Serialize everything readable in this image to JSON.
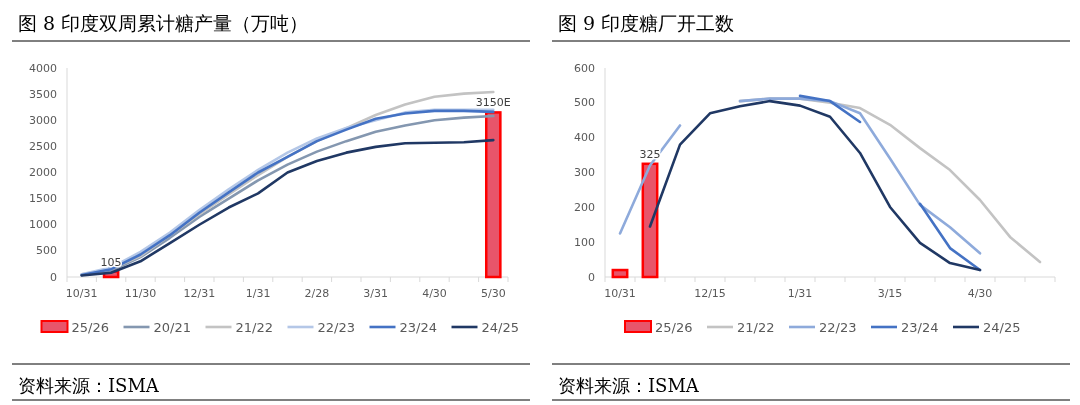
{
  "chart_data": [
    {
      "type": "line",
      "title": "图 8  印度双周累计糖产量（万吨）",
      "categories": [
        "10/31",
        null,
        "11/30",
        null,
        "12/31",
        null,
        "1/31",
        null,
        "2/28",
        null,
        "3/31",
        null,
        "4/30",
        null,
        "5/30"
      ],
      "ylim": [
        0,
        4000
      ],
      "yticks": [
        0,
        500,
        1000,
        1500,
        2000,
        2500,
        3000,
        3500,
        4000
      ],
      "legend": "bottom",
      "annotations": [
        "资料来源：ISMA"
      ],
      "series": [
        {
          "name": "25/26",
          "type": "bar",
          "color": "#e8556a",
          "values": [
            null,
            105,
            null,
            null,
            null,
            null,
            null,
            null,
            null,
            null,
            null,
            null,
            null,
            null,
            3150
          ],
          "value_labels": [
            null,
            "105",
            null,
            null,
            null,
            null,
            null,
            null,
            null,
            null,
            null,
            null,
            null,
            null,
            "3150E"
          ]
        },
        {
          "name": "20/21",
          "color": "#8497b0",
          "values": [
            40,
            120,
            380,
            750,
            1150,
            1500,
            1850,
            2150,
            2400,
            2600,
            2780,
            2900,
            3000,
            3050,
            3080
          ]
        },
        {
          "name": "21/22",
          "color": "#c3c3c3",
          "values": [
            50,
            150,
            400,
            800,
            1200,
            1580,
            1950,
            2300,
            2600,
            2850,
            3100,
            3300,
            3450,
            3510,
            3540
          ]
        },
        {
          "name": "22/23",
          "color": "#b4c7e7",
          "values": [
            50,
            180,
            480,
            850,
            1280,
            1680,
            2050,
            2380,
            2650,
            2850,
            3000,
            3150,
            3200,
            3200,
            3200
          ]
        },
        {
          "name": "23/24",
          "color": "#4472c4",
          "values": [
            40,
            150,
            430,
            800,
            1230,
            1620,
            2000,
            2300,
            2600,
            2820,
            3030,
            3130,
            3180,
            3180,
            3160
          ]
        },
        {
          "name": "24/25",
          "color": "#203864",
          "values": [
            30,
            80,
            300,
            650,
            1000,
            1330,
            1600,
            2000,
            2220,
            2380,
            2490,
            2560,
            2570,
            2580,
            2620
          ]
        }
      ]
    },
    {
      "type": "line",
      "title": "图 9  印度糖厂开工数",
      "categories": [
        "10/31",
        null,
        null,
        "12/15",
        null,
        null,
        "1/31",
        null,
        null,
        "3/15",
        null,
        null,
        "4/30",
        null,
        null
      ],
      "ylim": [
        0,
        600
      ],
      "yticks": [
        0,
        100,
        200,
        300,
        400,
        500,
        600
      ],
      "legend": "bottom",
      "annotations": [
        "资料来源：ISMA"
      ],
      "series": [
        {
          "name": "25/26",
          "type": "bar",
          "color": "#e8556a",
          "values": [
            20,
            325,
            null,
            null,
            null,
            null,
            null,
            null,
            null,
            null,
            null,
            null,
            null,
            null,
            null
          ],
          "value_labels": [
            null,
            "325",
            null,
            null,
            null,
            null,
            null,
            null,
            null,
            null,
            null,
            null,
            null,
            null,
            null
          ]
        },
        {
          "name": "21/22",
          "color": "#c3c3c3",
          "values": [
            null,
            null,
            null,
            null,
            505,
            512,
            512,
            500,
            485,
            437,
            370,
            307,
            221,
            115,
            43
          ]
        },
        {
          "name": "22/23",
          "color": "#8eaadb",
          "values": [
            125,
            320,
            435,
            null,
            505,
            512,
            512,
            505,
            470,
            340,
            207,
            143,
            68,
            null,
            null
          ]
        },
        {
          "name": "23/24",
          "color": "#4472c4",
          "values": [
            null,
            null,
            null,
            null,
            null,
            null,
            520,
            505,
            445,
            null,
            210,
            83,
            20,
            null,
            null
          ]
        },
        {
          "name": "24/25",
          "color": "#203864",
          "values": [
            null,
            145,
            380,
            470,
            490,
            505,
            492,
            460,
            356,
            201,
            98,
            40,
            20,
            null,
            null
          ]
        }
      ]
    }
  ]
}
